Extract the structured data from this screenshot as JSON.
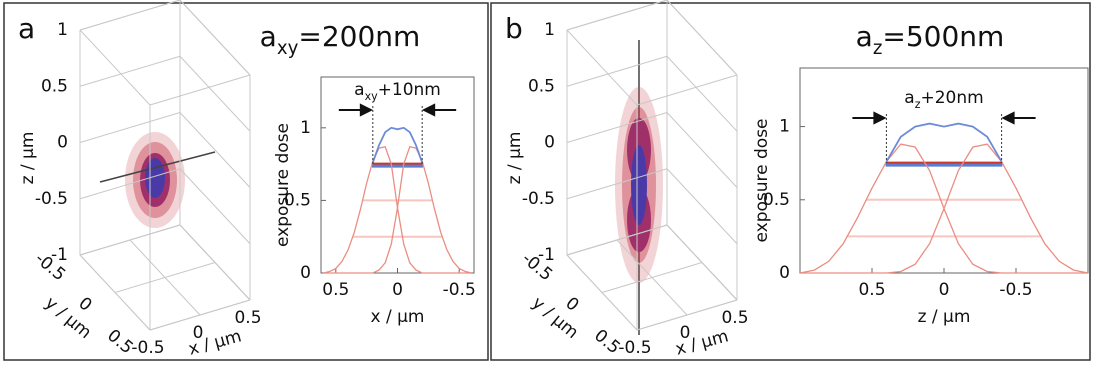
{
  "chart_data": [
    {
      "type": "volume3d",
      "label": "a",
      "xlabel": "x / µm",
      "ylabel": "y / µm",
      "zlabel": "z / µm",
      "xlim": [
        -0.5,
        0.5
      ],
      "xticks": [
        -0.5,
        0,
        0.5
      ],
      "ylim": [
        -0.5,
        0.5
      ],
      "yticks": [
        -0.5,
        0,
        0.5
      ],
      "zlim": [
        -1,
        1
      ],
      "zticks": [
        1,
        0.5,
        0,
        -0.5,
        -1
      ]
    },
    {
      "type": "line",
      "title": [
        "a",
        "xy",
        "=200nm"
      ],
      "annotation": [
        "a",
        "xy",
        "+10nm"
      ],
      "xlabel": "x / µm",
      "ylabel": "exposure dose",
      "xlim": [
        0.62,
        -0.62
      ],
      "xticks": [
        0.5,
        0,
        -0.5
      ],
      "ylim": [
        0,
        1.35
      ],
      "yticks": [
        0,
        0.5,
        1
      ],
      "x": [
        0.6,
        0.55,
        0.5,
        0.45,
        0.4,
        0.35,
        0.3,
        0.25,
        0.2,
        0.15,
        0.1,
        0.05,
        0,
        -0.05,
        -0.1,
        -0.15,
        -0.2,
        -0.25,
        -0.3,
        -0.35,
        -0.4,
        -0.45,
        -0.5,
        -0.55,
        -0.6
      ],
      "series": [
        {
          "color": "#ea8d82",
          "values": [
            0,
            0.01,
            0.03,
            0.08,
            0.16,
            0.28,
            0.44,
            0.62,
            0.77,
            0.86,
            0.87,
            0.75,
            0.45,
            0.2,
            0.07,
            0.02,
            0,
            0,
            0,
            0,
            0,
            0,
            0,
            0,
            0
          ]
        },
        {
          "color": "#ea8d82",
          "values": [
            0,
            0,
            0,
            0,
            0,
            0,
            0,
            0,
            0,
            0.02,
            0.07,
            0.2,
            0.45,
            0.75,
            0.87,
            0.86,
            0.77,
            0.62,
            0.44,
            0.28,
            0.16,
            0.08,
            0.03,
            0.01,
            0
          ]
        },
        {
          "color": "#6d8cd8",
          "values": [
            null,
            null,
            null,
            null,
            null,
            null,
            null,
            null,
            0.76,
            0.88,
            0.97,
            1.0,
            0.99,
            1.0,
            0.97,
            0.88,
            0.76,
            null,
            null,
            null,
            null,
            null,
            null,
            null,
            null
          ]
        }
      ],
      "hlines": [
        {
          "value": 0.5,
          "color": "#f6c6bf"
        },
        {
          "value": 0.25,
          "color": "#f6c6bf"
        },
        {
          "value": 0.75,
          "color": "#c9392e"
        },
        {
          "value": 0.75,
          "color": "#5a7ed0"
        }
      ]
    },
    {
      "type": "volume3d",
      "label": "b",
      "xlabel": "x / µm",
      "ylabel": "y / µm",
      "zlabel": "z / µm",
      "xlim": [
        -0.5,
        0.5
      ],
      "xticks": [
        -0.5,
        0,
        0.5
      ],
      "ylim": [
        -0.5,
        0.5
      ],
      "yticks": [
        -0.5,
        0,
        0.5
      ],
      "zlim": [
        -1,
        1
      ],
      "zticks": [
        1,
        0.5,
        0,
        -0.5,
        -1
      ]
    },
    {
      "type": "line",
      "title": [
        "a",
        "z",
        "=500nm"
      ],
      "annotation": [
        "a",
        "z",
        "+20nm"
      ],
      "xlabel": "z / µm",
      "ylabel": "exposure dose",
      "xlim": [
        1,
        -1
      ],
      "xticks": [
        0.5,
        0,
        -0.5
      ],
      "ylim": [
        0,
        1.4
      ],
      "yticks": [
        0,
        0.5,
        1
      ],
      "x": [
        1,
        0.9,
        0.8,
        0.7,
        0.6,
        0.5,
        0.4,
        0.3,
        0.2,
        0.1,
        0,
        -0.1,
        -0.2,
        -0.3,
        -0.4,
        -0.5,
        -0.6,
        -0.7,
        -0.8,
        -0.9,
        -1
      ],
      "series": [
        {
          "color": "#ea8d82",
          "values": [
            0,
            0.02,
            0.08,
            0.2,
            0.38,
            0.58,
            0.76,
            0.88,
            0.86,
            0.7,
            0.44,
            0.2,
            0.06,
            0.01,
            0,
            0,
            0,
            0,
            0,
            0,
            0
          ]
        },
        {
          "color": "#ea8d82",
          "values": [
            0,
            0,
            0,
            0,
            0,
            0,
            0,
            0.01,
            0.06,
            0.2,
            0.44,
            0.7,
            0.86,
            0.88,
            0.76,
            0.58,
            0.38,
            0.2,
            0.08,
            0.02,
            0
          ]
        },
        {
          "color": "#6d8cd8",
          "values": [
            null,
            null,
            null,
            null,
            null,
            null,
            0.76,
            0.93,
            1.0,
            1.02,
            1.0,
            1.02,
            1.0,
            0.93,
            0.76,
            null,
            null,
            null,
            null,
            null,
            null
          ]
        }
      ],
      "hlines": [
        {
          "value": 0.5,
          "color": "#f6c6bf"
        },
        {
          "value": 0.25,
          "color": "#f6c6bf"
        },
        {
          "value": 0.75,
          "color": "#c9392e"
        },
        {
          "value": 0.75,
          "color": "#5a7ed0"
        }
      ]
    }
  ]
}
